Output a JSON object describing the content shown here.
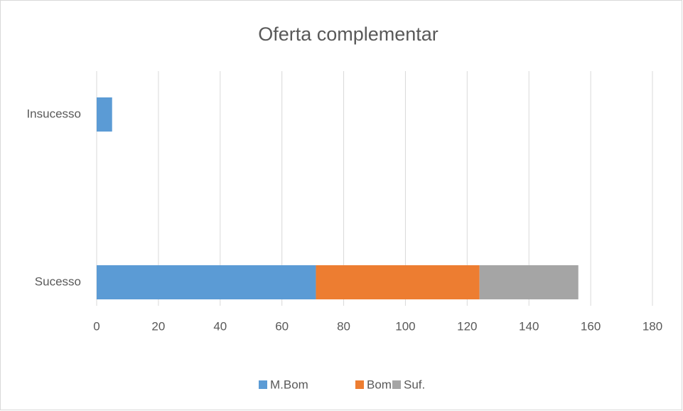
{
  "chart_data": {
    "type": "stacked_barh",
    "title": "Oferta complementar",
    "categories": [
      "Insucesso",
      "Sucesso"
    ],
    "series": [
      {
        "name": "M.Bom",
        "color": "#5b9bd5",
        "values": [
          5,
          71
        ]
      },
      {
        "name": "Bom",
        "color": "#ed7d31",
        "values": [
          0,
          53
        ]
      },
      {
        "name": "Suf.",
        "color": "#a5a5a5",
        "values": [
          0,
          32
        ]
      }
    ],
    "xlim": [
      0,
      180
    ],
    "xticks": [
      0,
      20,
      40,
      60,
      80,
      100,
      120,
      140,
      160,
      180
    ],
    "grid": true,
    "legend": "bottom"
  }
}
